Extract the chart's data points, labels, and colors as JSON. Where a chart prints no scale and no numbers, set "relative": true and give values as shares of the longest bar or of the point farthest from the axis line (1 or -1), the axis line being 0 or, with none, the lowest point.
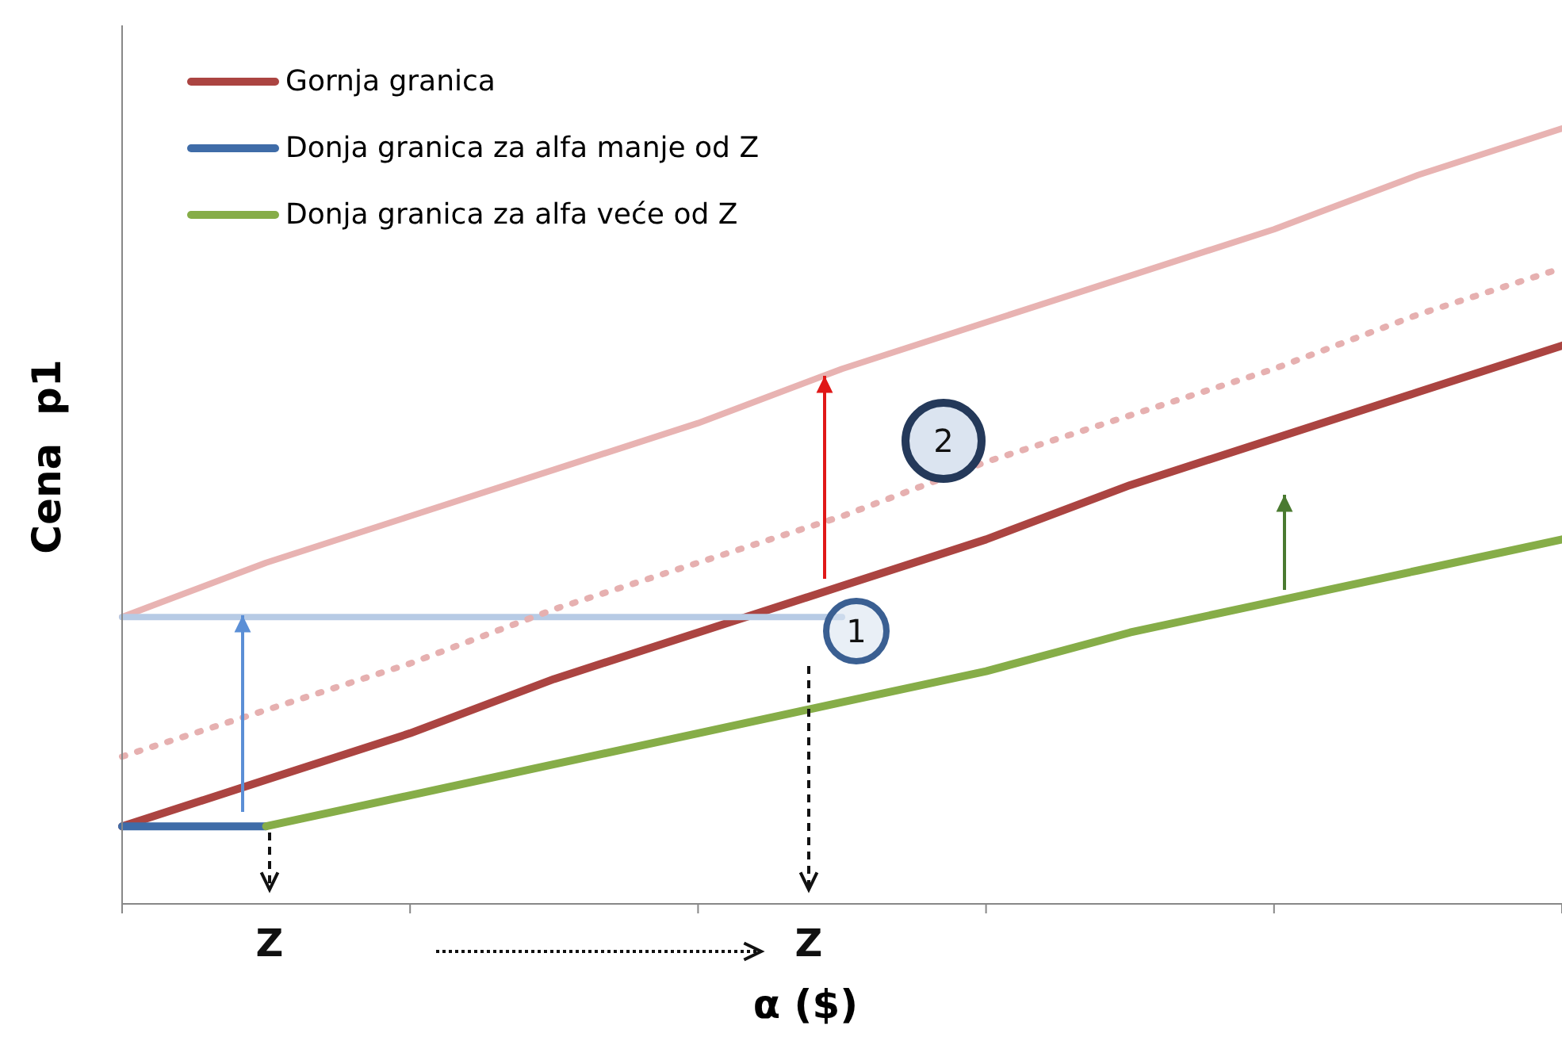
{
  "chart_data": {
    "type": "line",
    "relative": true,
    "xlabel": "α ($)",
    "ylabel": "Cena  p1",
    "categories": [
      null,
      null,
      null,
      null,
      null,
      null,
      null,
      null,
      null,
      null,
      null
    ],
    "series": [
      {
        "name": "Gornja granica",
        "color": "#ab4441",
        "values": [
          0.1,
          0.16,
          0.22,
          0.29,
          0.35,
          0.41,
          0.47,
          0.54,
          0.6,
          0.66,
          0.72
        ]
      },
      {
        "name": "Donja granica za alfa manje od Z",
        "color": "#3f6ca8",
        "values": [
          0.1,
          0.1,
          null,
          null,
          null,
          null,
          null,
          null,
          null,
          null,
          null
        ]
      },
      {
        "name": "Donja granica za alfa veće od Z",
        "color": "#86ad48",
        "values": [
          null,
          0.1,
          0.14,
          0.18,
          0.22,
          0.26,
          0.3,
          0.35,
          0.39,
          0.43,
          0.47
        ]
      },
      {
        "color": "#e8b3b2",
        "values": [
          0.37,
          0.44,
          0.5,
          0.56,
          0.62,
          0.69,
          0.75,
          0.81,
          0.87,
          0.94,
          1.0
        ]
      },
      {
        "color": "#b7cbe5",
        "values": [
          0.37,
          0.37,
          0.37,
          0.37,
          0.37,
          0.37,
          null,
          null,
          null,
          null,
          null
        ]
      },
      {
        "color": "#e6b0b0",
        "line_style": "dotted",
        "values": [
          0.19,
          0.25,
          0.31,
          0.38,
          0.44,
          0.5,
          0.57,
          0.63,
          0.69,
          0.76,
          0.82
        ]
      }
    ],
    "annotations": [
      "Z",
      "Z",
      "1",
      "2"
    ],
    "legend": "top left",
    "marker": "none",
    "line_style": "solid"
  }
}
